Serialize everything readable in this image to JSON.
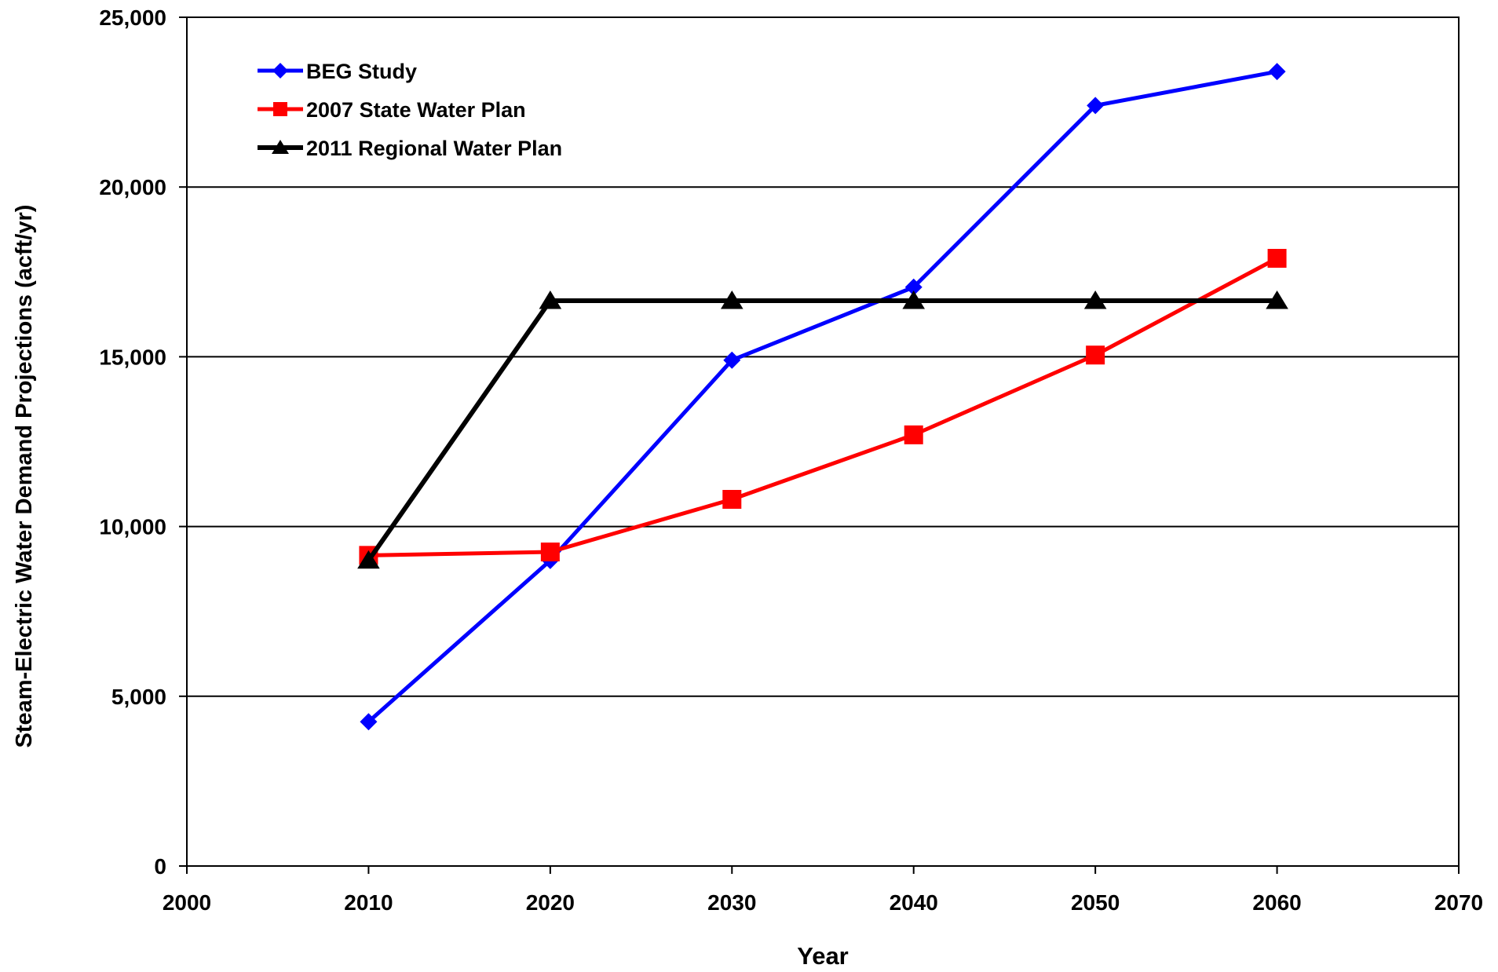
{
  "chart_data": {
    "type": "line",
    "title": "",
    "xlabel": "Year",
    "ylabel": "Steam-Electric Water Demand Projections (acft/yr)",
    "xlim": [
      2000,
      2070
    ],
    "ylim": [
      0,
      25000
    ],
    "x_ticks": [
      2000,
      2010,
      2020,
      2030,
      2040,
      2050,
      2060,
      2070
    ],
    "y_ticks": [
      0,
      5000,
      10000,
      15000,
      20000,
      25000
    ],
    "y_tick_labels": [
      "0",
      "5,000",
      "10,000",
      "15,000",
      "20,000",
      "25,000"
    ],
    "grid": "horizontal",
    "legend_position": "top-left",
    "series": [
      {
        "name": "BEG Study",
        "color": "#0000FF",
        "marker": "diamond",
        "x": [
          2010,
          2020,
          2030,
          2040,
          2050,
          2060
        ],
        "values": [
          4250,
          9000,
          14900,
          17050,
          22400,
          23400
        ]
      },
      {
        "name": "2007 State Water Plan",
        "color": "#FF0000",
        "marker": "square",
        "x": [
          2010,
          2020,
          2030,
          2040,
          2050,
          2060
        ],
        "values": [
          9150,
          9250,
          10800,
          12700,
          15050,
          17900
        ]
      },
      {
        "name": "2011 Regional Water Plan",
        "color": "#000000",
        "marker": "triangle",
        "x": [
          2010,
          2020,
          2030,
          2040,
          2050,
          2060
        ],
        "values": [
          9000,
          16650,
          16650,
          16650,
          16650,
          16650
        ]
      }
    ]
  }
}
